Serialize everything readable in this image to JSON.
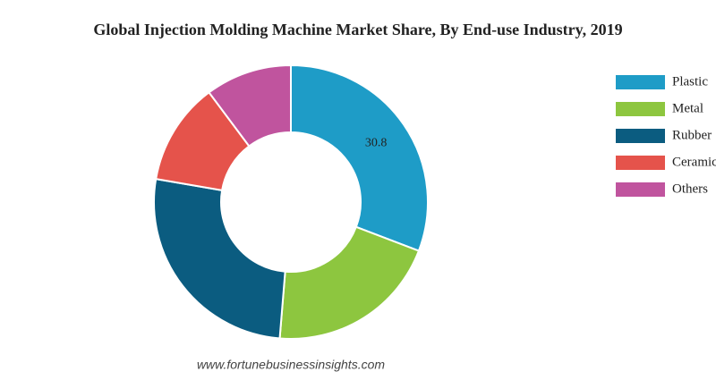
{
  "chart_data": {
    "type": "donut",
    "title": "Global Injection Molding Machine Market Share, By End-use Industry, 2019",
    "categories": [
      "Plastic",
      "Metal",
      "Rubber",
      "Ceramic",
      "Others"
    ],
    "values": [
      30.8,
      20.5,
      26.4,
      12.1,
      10.2
    ],
    "value_labels": [
      "30.8",
      null,
      null,
      null,
      null
    ],
    "colors": [
      "#1e9cc7",
      "#8dc63f",
      "#0b5c80",
      "#e5534b",
      "#c0549e"
    ],
    "legend": "right",
    "source": "www.fortunebusinessinsights.com"
  }
}
